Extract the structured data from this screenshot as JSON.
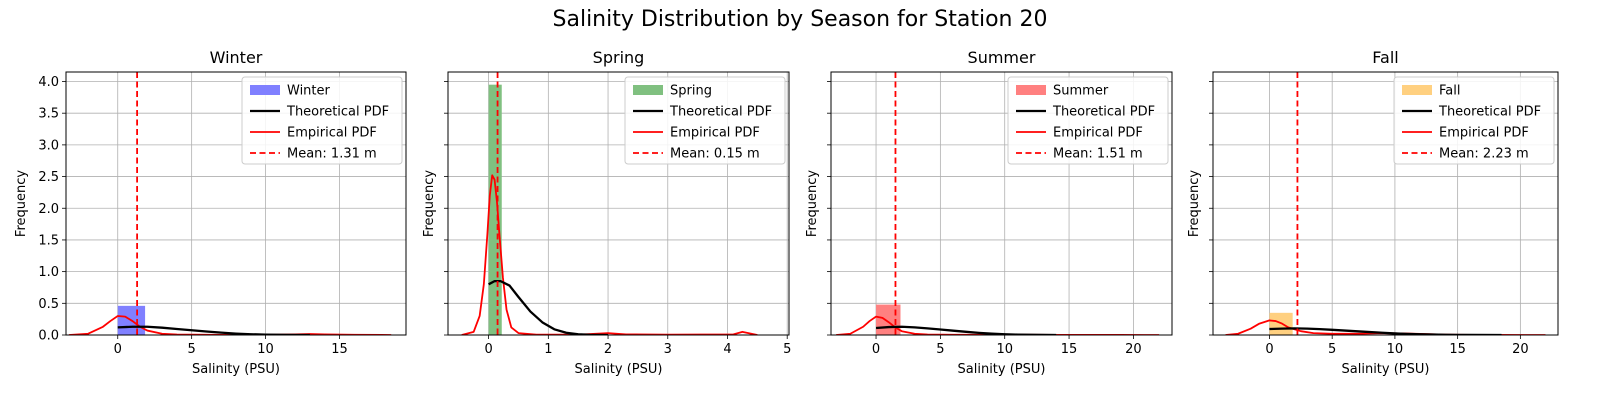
{
  "figure": {
    "title": "Salinity Distribution by Season for Station 20"
  },
  "chart_data": [
    {
      "type": "histogram",
      "title": "Winter",
      "xlabel": "Salinity (PSU)",
      "ylabel": "Frequency",
      "xlim": [
        -3.5,
        19.5
      ],
      "ylim": [
        0,
        4.15
      ],
      "xticks": [
        0,
        5,
        10,
        15
      ],
      "yticks": [
        0.0,
        0.5,
        1.0,
        1.5,
        2.0,
        2.5,
        3.0,
        3.5,
        4.0
      ],
      "ytick_labels_visible": true,
      "grid": true,
      "legend_position": "top-right",
      "colors": {
        "bar": "#8080ff",
        "theoretical": "#000000",
        "empirical": "#ff0000",
        "mean": "#ff0000"
      },
      "bars": [
        {
          "x0": 0.0,
          "x1": 1.85,
          "height": 0.46
        },
        {
          "x0": 1.85,
          "x1": 18.5,
          "height": 0.005
        }
      ],
      "theoretical_pdf": [
        [
          0,
          0.12
        ],
        [
          1,
          0.13
        ],
        [
          2,
          0.13
        ],
        [
          3,
          0.115
        ],
        [
          4,
          0.095
        ],
        [
          5,
          0.075
        ],
        [
          6,
          0.055
        ],
        [
          7,
          0.037
        ],
        [
          8,
          0.022
        ],
        [
          9,
          0.012
        ],
        [
          10,
          0.006
        ],
        [
          11,
          0.003
        ],
        [
          12,
          0.001
        ],
        [
          13,
          0.0
        ]
      ],
      "empirical_pdf": [
        [
          -3.3,
          0.0
        ],
        [
          -2,
          0.02
        ],
        [
          -1,
          0.13
        ],
        [
          -0.5,
          0.22
        ],
        [
          0,
          0.3
        ],
        [
          0.5,
          0.29
        ],
        [
          1,
          0.22
        ],
        [
          1.5,
          0.13
        ],
        [
          2,
          0.07
        ],
        [
          3,
          0.02
        ],
        [
          4,
          0.008
        ],
        [
          6,
          0.004
        ],
        [
          8,
          0.002
        ],
        [
          10,
          0.002
        ],
        [
          12,
          0.01
        ],
        [
          13,
          0.015
        ],
        [
          14,
          0.01
        ],
        [
          16,
          0.003
        ],
        [
          18.5,
          0.0
        ]
      ],
      "mean": 1.31,
      "legend": [
        "Winter",
        "Theoretical PDF",
        "Empirical PDF",
        "Mean: 1.31 m"
      ]
    },
    {
      "type": "histogram",
      "title": "Spring",
      "xlabel": "Salinity (PSU)",
      "ylabel": "Frequency",
      "xlim": [
        -0.68,
        5.03
      ],
      "ylim": [
        0,
        4.15
      ],
      "xticks": [
        0,
        1,
        2,
        3,
        4,
        5
      ],
      "yticks": [
        0.0,
        0.5,
        1.0,
        1.5,
        2.0,
        2.5,
        3.0,
        3.5,
        4.0
      ],
      "ytick_labels_visible": false,
      "grid": true,
      "legend_position": "top-right",
      "colors": {
        "bar": "#80c080",
        "theoretical": "#000000",
        "empirical": "#ff0000",
        "mean": "#ff0000"
      },
      "bars": [
        {
          "x0": 0.0,
          "x1": 0.22,
          "height": 3.95
        },
        {
          "x0": 0.22,
          "x1": 4.4,
          "height": 0.005
        }
      ],
      "theoretical_pdf": [
        [
          0,
          0.8
        ],
        [
          0.1,
          0.85
        ],
        [
          0.2,
          0.85
        ],
        [
          0.35,
          0.78
        ],
        [
          0.5,
          0.6
        ],
        [
          0.7,
          0.37
        ],
        [
          0.9,
          0.2
        ],
        [
          1.1,
          0.09
        ],
        [
          1.3,
          0.035
        ],
        [
          1.5,
          0.012
        ],
        [
          1.7,
          0.004
        ],
        [
          2.0,
          0.0
        ]
      ],
      "empirical_pdf": [
        [
          -0.45,
          0.0
        ],
        [
          -0.25,
          0.05
        ],
        [
          -0.15,
          0.3
        ],
        [
          -0.08,
          0.8
        ],
        [
          -0.02,
          1.6
        ],
        [
          0.02,
          2.2
        ],
        [
          0.06,
          2.52
        ],
        [
          0.1,
          2.45
        ],
        [
          0.14,
          2.1
        ],
        [
          0.18,
          1.6
        ],
        [
          0.24,
          0.9
        ],
        [
          0.3,
          0.4
        ],
        [
          0.38,
          0.12
        ],
        [
          0.5,
          0.03
        ],
        [
          0.8,
          0.005
        ],
        [
          1.5,
          0.005
        ],
        [
          2.0,
          0.03
        ],
        [
          2.3,
          0.01
        ],
        [
          3,
          0.005
        ],
        [
          4.1,
          0.01
        ],
        [
          4.25,
          0.05
        ],
        [
          4.35,
          0.03
        ],
        [
          4.5,
          0.0
        ]
      ],
      "mean": 0.15,
      "legend": [
        "Spring",
        "Theoretical PDF",
        "Empirical PDF",
        "Mean: 0.15 m"
      ]
    },
    {
      "type": "histogram",
      "title": "Summer",
      "xlabel": "Salinity (PSU)",
      "ylabel": "Frequency",
      "xlim": [
        -3.5,
        23.0
      ],
      "ylim": [
        0,
        4.15
      ],
      "xticks": [
        0,
        5,
        10,
        15,
        20
      ],
      "yticks": [
        0.0,
        0.5,
        1.0,
        1.5,
        2.0,
        2.5,
        3.0,
        3.5,
        4.0
      ],
      "ytick_labels_visible": false,
      "grid": true,
      "legend_position": "top-right",
      "colors": {
        "bar": "#ff8080",
        "theoretical": "#000000",
        "empirical": "#ff0000",
        "mean": "#ff0000"
      },
      "bars": [
        {
          "x0": 0.0,
          "x1": 1.9,
          "height": 0.48
        },
        {
          "x0": 1.9,
          "x1": 19.0,
          "height": 0.005
        }
      ],
      "theoretical_pdf": [
        [
          0,
          0.11
        ],
        [
          1,
          0.125
        ],
        [
          2,
          0.13
        ],
        [
          3,
          0.12
        ],
        [
          4,
          0.105
        ],
        [
          5,
          0.087
        ],
        [
          6,
          0.068
        ],
        [
          7,
          0.05
        ],
        [
          8,
          0.034
        ],
        [
          9,
          0.021
        ],
        [
          10,
          0.012
        ],
        [
          11,
          0.006
        ],
        [
          12,
          0.003
        ],
        [
          14,
          0.0
        ]
      ],
      "empirical_pdf": [
        [
          -3.1,
          0.0
        ],
        [
          -2,
          0.02
        ],
        [
          -1,
          0.13
        ],
        [
          -0.5,
          0.22
        ],
        [
          0,
          0.29
        ],
        [
          0.5,
          0.27
        ],
        [
          1,
          0.2
        ],
        [
          1.5,
          0.12
        ],
        [
          2,
          0.06
        ],
        [
          3,
          0.02
        ],
        [
          4,
          0.008
        ],
        [
          6,
          0.004
        ],
        [
          8,
          0.003
        ],
        [
          10,
          0.005
        ],
        [
          12,
          0.004
        ],
        [
          14,
          0.002
        ],
        [
          16,
          0.001
        ],
        [
          19,
          0.001
        ],
        [
          22,
          0.0
        ]
      ],
      "mean": 1.51,
      "legend": [
        "Summer",
        "Theoretical PDF",
        "Empirical PDF",
        "Mean: 1.51 m"
      ]
    },
    {
      "type": "histogram",
      "title": "Fall",
      "xlabel": "Salinity (PSU)",
      "ylabel": "Frequency",
      "xlim": [
        -4.5,
        23.0
      ],
      "ylim": [
        0,
        4.15
      ],
      "xticks": [
        0,
        5,
        10,
        15,
        20
      ],
      "yticks": [
        0.0,
        0.5,
        1.0,
        1.5,
        2.0,
        2.5,
        3.0,
        3.5,
        4.0
      ],
      "ytick_labels_visible": false,
      "grid": true,
      "legend_position": "top-right",
      "colors": {
        "bar": "#ffd080",
        "theoretical": "#000000",
        "empirical": "#ff0000",
        "mean": "#ff0000"
      },
      "bars": [
        {
          "x0": 0.0,
          "x1": 1.85,
          "height": 0.35
        },
        {
          "x0": 1.85,
          "x1": 18.5,
          "height": 0.005
        }
      ],
      "theoretical_pdf": [
        [
          0,
          0.095
        ],
        [
          1,
          0.1
        ],
        [
          2,
          0.105
        ],
        [
          3,
          0.1
        ],
        [
          4,
          0.093
        ],
        [
          5,
          0.082
        ],
        [
          6,
          0.07
        ],
        [
          7,
          0.058
        ],
        [
          8,
          0.046
        ],
        [
          9,
          0.035
        ],
        [
          10,
          0.025
        ],
        [
          11,
          0.017
        ],
        [
          12,
          0.011
        ],
        [
          13,
          0.007
        ],
        [
          14,
          0.004
        ],
        [
          15,
          0.002
        ],
        [
          16,
          0.001
        ],
        [
          18.5,
          0.0
        ]
      ],
      "empirical_pdf": [
        [
          -3.5,
          0.0
        ],
        [
          -2.5,
          0.02
        ],
        [
          -1.5,
          0.1
        ],
        [
          -0.8,
          0.18
        ],
        [
          0,
          0.23
        ],
        [
          0.5,
          0.22
        ],
        [
          1,
          0.18
        ],
        [
          1.5,
          0.12
        ],
        [
          2.5,
          0.06
        ],
        [
          3.5,
          0.03
        ],
        [
          5,
          0.02
        ],
        [
          7,
          0.02
        ],
        [
          9,
          0.03
        ],
        [
          10.5,
          0.025
        ],
        [
          12,
          0.018
        ],
        [
          14,
          0.006
        ],
        [
          16,
          0.002
        ],
        [
          18,
          0.001
        ],
        [
          22,
          0.0
        ]
      ],
      "mean": 2.23,
      "legend": [
        "Fall",
        "Theoretical PDF",
        "Empirical PDF",
        "Mean: 2.23 m"
      ]
    }
  ]
}
